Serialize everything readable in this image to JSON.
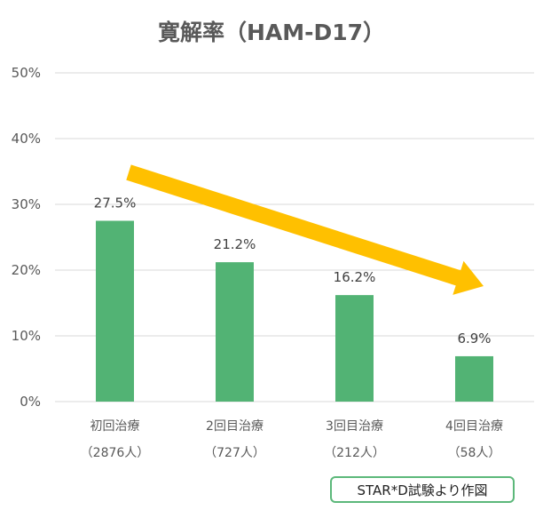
{
  "chart_data": {
    "type": "bar",
    "title": "寛解率（HAM-D17）",
    "categories": [
      "初回治療",
      "2回目治療",
      "3回目治療",
      "4回目治療"
    ],
    "sublabels": [
      "（2876人）",
      "（727人）",
      "（212人）",
      "（58人）"
    ],
    "values": [
      27.5,
      21.2,
      16.2,
      6.9
    ],
    "value_labels": [
      "27.5%",
      "21.2%",
      "16.2%",
      "6.9%"
    ],
    "ylim": [
      0,
      50
    ],
    "yticks": [
      0,
      10,
      20,
      30,
      40,
      50
    ],
    "ytick_labels": [
      "0%",
      "10%",
      "20%",
      "30%",
      "40%",
      "50%"
    ],
    "grid": true,
    "legend": "none",
    "annotation": "downward-trend-arrow",
    "colors": {
      "bar": "#52b374",
      "arrow": "#ffc000",
      "grid": "#d9d9d9",
      "text": "#595959"
    }
  },
  "source_note": "STAR*D試験より作図"
}
